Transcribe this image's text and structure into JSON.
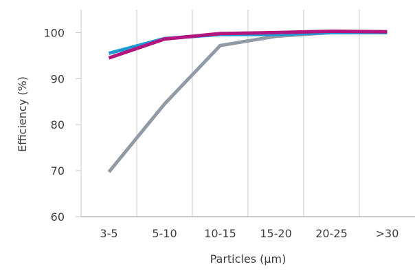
{
  "chart_data": {
    "type": "line",
    "title": "",
    "xlabel": "Particles (µm)",
    "ylabel": "Efficiency (%)",
    "categories": [
      "3-5",
      "5-10",
      "10-15",
      "15-20",
      "20-25",
      ">30"
    ],
    "ylim": [
      60,
      105
    ],
    "yticks": [
      60,
      70,
      80,
      90,
      100
    ],
    "grid": "vertical-and-horizontal",
    "legend": "none",
    "series": [
      {
        "color": "#919ba5",
        "values": [
          69.7,
          84.5,
          97.2,
          99.2,
          100.0,
          100.1
        ]
      },
      {
        "color": "#1e9bd7",
        "values": [
          95.5,
          98.7,
          99.6,
          99.6,
          100.0,
          100.0
        ]
      },
      {
        "color": "#b4147d",
        "values": [
          94.5,
          98.6,
          99.8,
          100.0,
          100.3,
          100.2
        ]
      }
    ]
  }
}
